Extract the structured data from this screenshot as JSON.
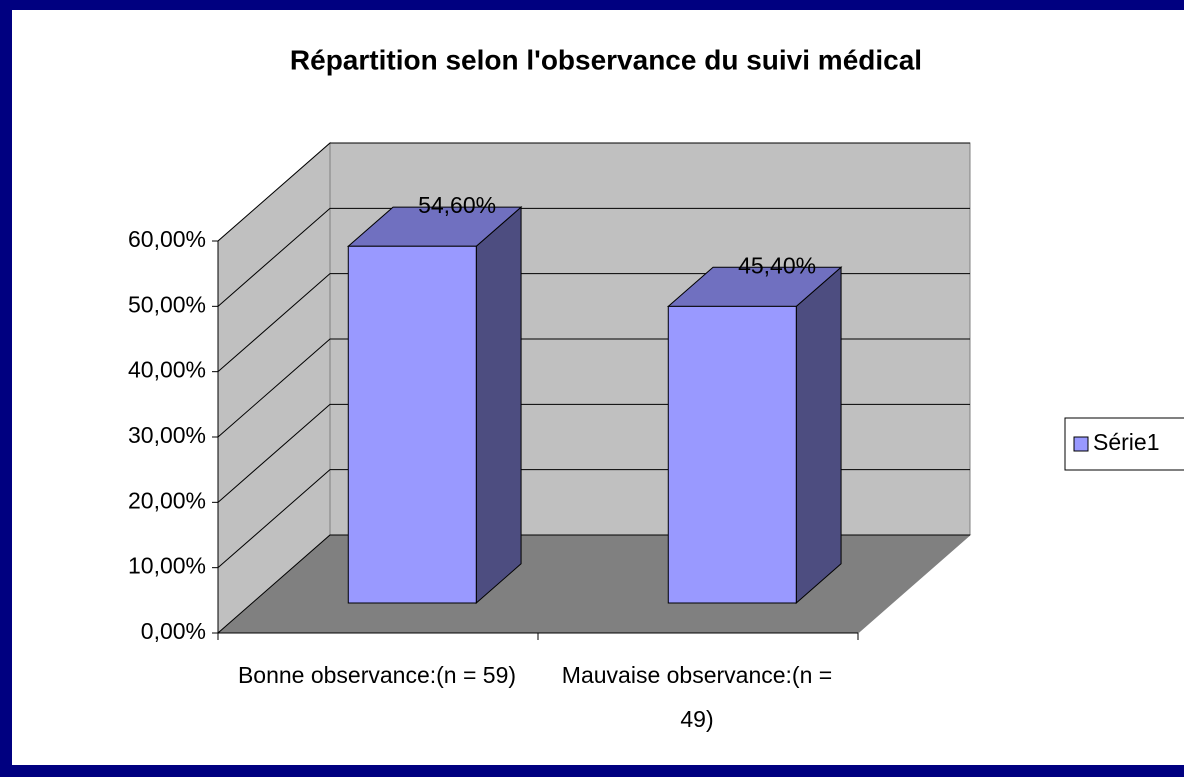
{
  "chart_data": {
    "type": "bar3d",
    "title": "Répartition selon l'observance du suivi médical",
    "categories": [
      "Bonne observance:(n = 59)",
      "Mauvaise observance:(n = 49)"
    ],
    "series": [
      {
        "name": "Série1",
        "color": "#9999ff",
        "values": [
          54.6,
          45.4
        ],
        "value_labels": [
          "54,60%",
          "45,40%"
        ]
      }
    ],
    "ylim": [
      0,
      60
    ],
    "yticks": [
      {
        "value": 0,
        "label": "0,00%"
      },
      {
        "value": 10,
        "label": "10,00%"
      },
      {
        "value": 20,
        "label": "20,00%"
      },
      {
        "value": 30,
        "label": "30,00%"
      },
      {
        "value": 40,
        "label": "40,00%"
      },
      {
        "value": 50,
        "label": "50,00%"
      },
      {
        "value": 60,
        "label": "60,00%"
      }
    ],
    "grid": true
  }
}
